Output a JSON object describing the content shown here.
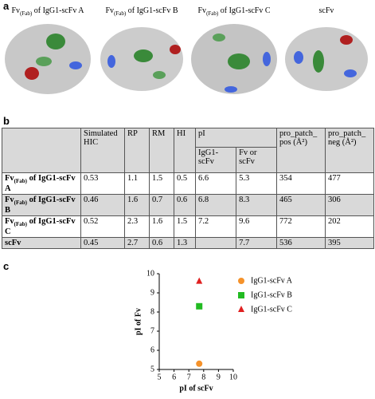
{
  "panel_labels": [
    "a",
    "b",
    "c"
  ],
  "structures": [
    {
      "name": "Fv",
      "sub": "(Fab)",
      "rest": " of IgG1-scFv A"
    },
    {
      "name": "Fv",
      "sub": "(Fab)",
      "rest": " of IgG1-scFv B"
    },
    {
      "name": "Fv",
      "sub": "(Fab)",
      "rest": " of IgG1-scFv C"
    },
    {
      "name": "scFv"
    }
  ],
  "table": {
    "headers": [
      "Simulated HIC",
      "RP",
      "RM",
      "HI",
      "pI",
      "pro_patch_ pos (Å²)",
      "pro_patch_ neg (Å²)"
    ],
    "pI_subheaders": [
      "IgG1-scFv",
      "Fv or scFv"
    ],
    "rows": [
      {
        "label": {
          "name": "Fv",
          "sub": "(Fab)",
          "rest": " of IgG1-scFv A"
        },
        "values": [
          0.53,
          1.1,
          1.5,
          0.5,
          6.6,
          5.3,
          354,
          477
        ]
      },
      {
        "label": {
          "name": "Fv",
          "sub": "(Fab)",
          "rest": " of IgG1-scFv B"
        },
        "values": [
          0.46,
          1.6,
          0.7,
          0.6,
          6.8,
          8.3,
          465,
          306
        ]
      },
      {
        "label": {
          "name": "Fv",
          "sub": "(Fab)",
          "rest": " of IgG1-scFv C"
        },
        "values": [
          0.52,
          2.3,
          1.6,
          1.5,
          7.2,
          9.6,
          772,
          202
        ]
      },
      {
        "label": {
          "name": "scFv"
        },
        "values": [
          0.45,
          2.7,
          0.6,
          1.3,
          null,
          7.7,
          536,
          395
        ]
      }
    ]
  },
  "chart_data": {
    "type": "scatter",
    "x_label": "pI of scFv",
    "y_label": "pI of Fv",
    "xlim": [
      5,
      10
    ],
    "ylim": [
      5,
      10
    ],
    "xticks": [
      5,
      6,
      7,
      8,
      9,
      10
    ],
    "yticks": [
      5,
      6,
      7,
      8,
      9,
      10
    ],
    "legend": "upper right",
    "series": [
      {
        "name": "IgG1-scFv A",
        "color": "#f5922a",
        "marker": "circle",
        "x": [
          7.7
        ],
        "values": [
          5.3
        ]
      },
      {
        "name": "IgG1-scFv B",
        "color": "#22bb22",
        "marker": "square",
        "x": [
          7.7
        ],
        "values": [
          8.3
        ]
      },
      {
        "name": "IgG1-scFv C",
        "color": "#e02020",
        "marker": "triangle",
        "x": [
          7.7
        ],
        "values": [
          9.6
        ]
      }
    ]
  }
}
